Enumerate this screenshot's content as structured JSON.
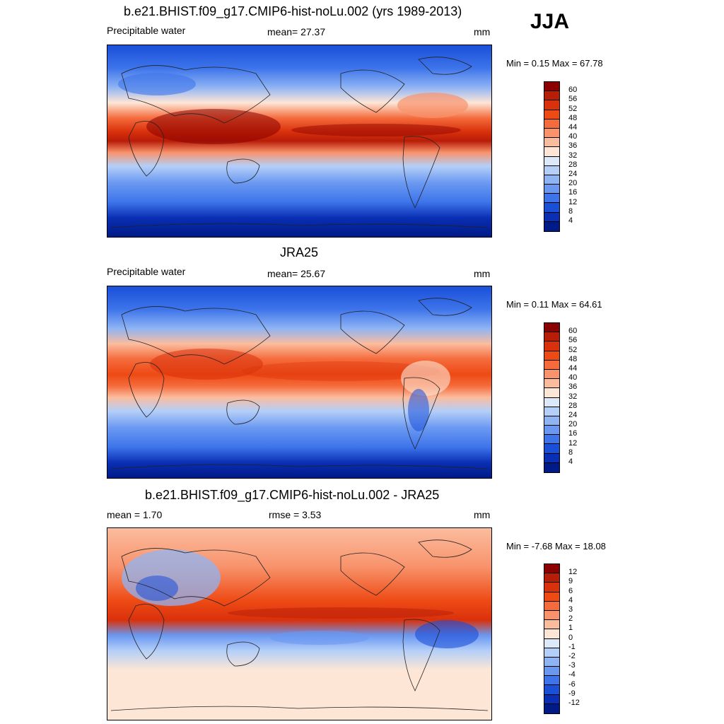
{
  "season": "JJA",
  "panels": [
    {
      "title": "b.e21.BHIST.f09_g17.CMIP6-hist-noLu.002 (yrs 1989-2013)",
      "variable": "Precipitable water",
      "stat1": "mean=  27.37",
      "stat2": "",
      "units": "mm",
      "minmax": "Min =   0.15 Max =  67.78",
      "kind": "abs"
    },
    {
      "title": "JRA25",
      "variable": "Precipitable water",
      "stat1": "mean=  25.67",
      "stat2": "",
      "units": "mm",
      "minmax": "Min =   0.11 Max =  64.61",
      "kind": "abs"
    },
    {
      "title": "b.e21.BHIST.f09_g17.CMIP6-hist-noLu.002 - JRA25",
      "variable": "",
      "stat1": "mean =   1.70",
      "stat2": "rmse =   3.53",
      "units": "mm",
      "minmax": "Min =  -7.68 Max =  18.08",
      "kind": "diff"
    }
  ],
  "colorbar_abs": {
    "labels": [
      "60",
      "56",
      "52",
      "48",
      "44",
      "40",
      "36",
      "32",
      "28",
      "24",
      "20",
      "16",
      "12",
      "8",
      "4"
    ],
    "colors": [
      "#8b0000",
      "#b81d08",
      "#d9310c",
      "#ee4a14",
      "#f56b3c",
      "#f8936c",
      "#fbbc9e",
      "#fde6d6",
      "#dbe9fb",
      "#b4cff8",
      "#8fb4f4",
      "#6a98f1",
      "#3d74ea",
      "#1a4fd8",
      "#0a2fb4",
      "#001a87"
    ]
  },
  "colorbar_diff": {
    "labels": [
      "12",
      "9",
      "6",
      "4",
      "3",
      "2",
      "1",
      "0",
      "-1",
      "-2",
      "-3",
      "-4",
      "-6",
      "-9",
      "-12"
    ],
    "colors": [
      "#8b0000",
      "#b81d08",
      "#d9310c",
      "#ee4a14",
      "#f56b3c",
      "#f8936c",
      "#fbbc9e",
      "#fde6d6",
      "#dbe9fb",
      "#b4cff8",
      "#8fb4f4",
      "#6a98f1",
      "#3d74ea",
      "#1a4fd8",
      "#0a2fb4",
      "#001a87"
    ]
  }
}
